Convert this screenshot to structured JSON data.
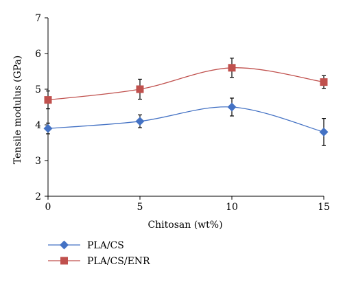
{
  "chart_data": {
    "type": "line",
    "title": "",
    "xlabel": "Chitosan (wt%)",
    "ylabel": "Tensile modulus (GPa)",
    "x": [
      0,
      5,
      10,
      15
    ],
    "xlim": [
      0,
      15
    ],
    "ylim": [
      2,
      7
    ],
    "xticks": [
      "0",
      "5",
      "10",
      "15"
    ],
    "yticks": [
      "2",
      "3",
      "4",
      "5",
      "6",
      "7"
    ],
    "grid": false,
    "smooth": true,
    "legend_position": "bottom-left",
    "series": [
      {
        "name": "PLA/CS",
        "values": [
          3.9,
          4.1,
          4.5,
          3.8
        ],
        "errors": [
          0.15,
          0.18,
          0.25,
          0.38
        ],
        "color": "#4472C4",
        "marker": "diamond"
      },
      {
        "name": "PLA/CS/ENR",
        "values": [
          4.7,
          5.0,
          5.6,
          5.2
        ],
        "errors": [
          0.25,
          0.28,
          0.27,
          0.18
        ],
        "color": "#C0504D",
        "marker": "square"
      }
    ]
  }
}
